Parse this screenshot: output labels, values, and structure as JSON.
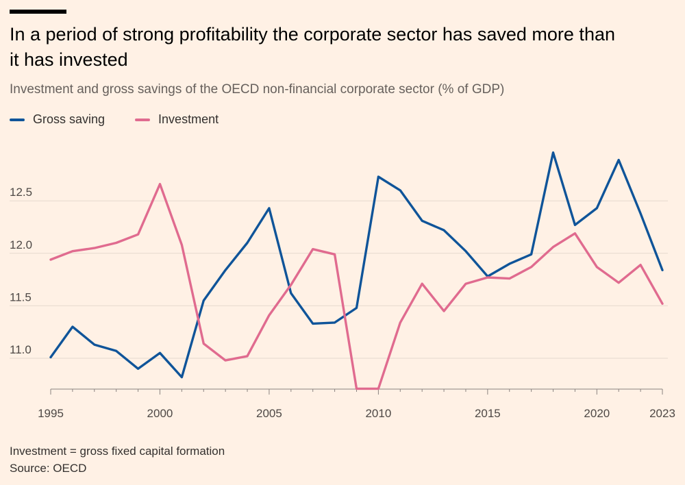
{
  "header": {
    "title": "In a period of strong profitability the corporate sector has saved more than it has invested",
    "subtitle": "Investment and gross savings of the OECD non-financial corporate sector (% of GDP)"
  },
  "colors": {
    "background": "#FFF1E5",
    "gross_saving": "#0F5499",
    "investment": "#E06B8F",
    "gridline": "#E6D9CE"
  },
  "footer": {
    "note": "Investment = gross fixed capital formation",
    "source": "Source: OECD"
  },
  "chart_data": {
    "type": "line",
    "title": "In a period of strong profitability the corporate sector has saved more than it has invested",
    "subtitle": "Investment and gross savings of the OECD non-financial corporate sector (% of GDP)",
    "xlabel": "",
    "ylabel": "",
    "x": [
      1995,
      1996,
      1997,
      1998,
      1999,
      2000,
      2001,
      2002,
      2003,
      2004,
      2005,
      2006,
      2007,
      2008,
      2009,
      2010,
      2011,
      2012,
      2013,
      2014,
      2015,
      2016,
      2017,
      2018,
      2019,
      2020,
      2021,
      2022,
      2023
    ],
    "x_ticks": [
      1995,
      2000,
      2005,
      2010,
      2015,
      2020,
      2023
    ],
    "y_ticks": [
      11.0,
      11.5,
      12.0,
      12.5
    ],
    "y_tick_labels": [
      "11.0",
      "11.5",
      "12.0",
      "12.5"
    ],
    "xlim": [
      1995,
      2023
    ],
    "ylim": [
      10.7,
      13.0
    ],
    "grid": true,
    "legend_position": "top-left",
    "series": [
      {
        "name": "Gross saving",
        "color": "#0F5499",
        "values": [
          11.01,
          11.3,
          11.13,
          11.07,
          10.9,
          11.05,
          10.82,
          11.55,
          11.84,
          12.1,
          12.43,
          11.62,
          11.33,
          11.34,
          11.48,
          12.73,
          12.6,
          12.31,
          12.22,
          12.02,
          11.78,
          11.9,
          11.99,
          12.96,
          12.27,
          12.43,
          12.89,
          12.38,
          11.84
        ]
      },
      {
        "name": "Investment",
        "color": "#E06B8F",
        "values": [
          11.94,
          12.02,
          12.05,
          12.1,
          12.18,
          12.66,
          12.08,
          11.14,
          10.98,
          11.02,
          11.41,
          11.7,
          12.04,
          11.99,
          10.71,
          10.71,
          11.34,
          11.71,
          11.45,
          11.71,
          11.77,
          11.76,
          11.87,
          12.06,
          12.19,
          11.87,
          11.72,
          11.89,
          11.52
        ]
      }
    ]
  }
}
